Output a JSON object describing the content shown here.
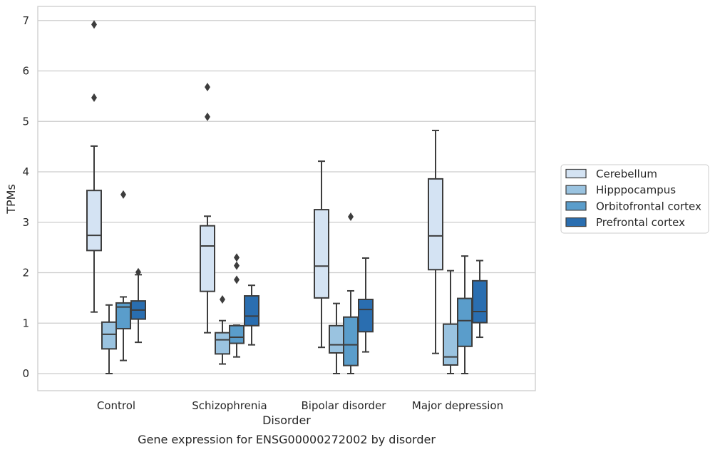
{
  "caption": "Gene expression for ENSG00000272002 by disorder",
  "chart_data": {
    "type": "box",
    "xlabel": "Disorder",
    "ylabel": "TPMs",
    "ylim": [
      -0.33,
      7.3
    ],
    "yticks": [
      0,
      1,
      2,
      3,
      4,
      5,
      6,
      7
    ],
    "grid": true,
    "legend_position": "right",
    "categories": [
      "Control",
      "Schizophrenia",
      "Bipolar disorder",
      "Major depression"
    ],
    "series": [
      {
        "name": "Cerebellum",
        "color": "#d4e3f3",
        "boxes": [
          {
            "whisker_low": 1.22,
            "q1": 2.44,
            "median": 2.74,
            "q3": 3.63,
            "whisker_high": 4.51,
            "outliers": [
              5.47,
              6.92
            ]
          },
          {
            "whisker_low": 0.81,
            "q1": 1.63,
            "median": 2.53,
            "q3": 2.93,
            "whisker_high": 3.12,
            "outliers": [
              5.09,
              5.68
            ]
          },
          {
            "whisker_low": 0.52,
            "q1": 1.5,
            "median": 2.13,
            "q3": 3.25,
            "whisker_high": 4.21,
            "outliers": []
          },
          {
            "whisker_low": 0.4,
            "q1": 2.06,
            "median": 2.73,
            "q3": 3.86,
            "whisker_high": 4.82,
            "outliers": []
          }
        ]
      },
      {
        "name": "Hipppocampus",
        "color": "#9ac3e0",
        "boxes": [
          {
            "whisker_low": 0.0,
            "q1": 0.49,
            "median": 0.78,
            "q3": 1.02,
            "whisker_high": 1.36,
            "outliers": []
          },
          {
            "whisker_low": 0.19,
            "q1": 0.39,
            "median": 0.67,
            "q3": 0.81,
            "whisker_high": 1.05,
            "outliers": [
              1.47
            ]
          },
          {
            "whisker_low": 0.0,
            "q1": 0.41,
            "median": 0.57,
            "q3": 0.95,
            "whisker_high": 1.39,
            "outliers": []
          },
          {
            "whisker_low": 0.0,
            "q1": 0.17,
            "median": 0.33,
            "q3": 0.98,
            "whisker_high": 2.04,
            "outliers": []
          }
        ]
      },
      {
        "name": "Orbitofrontal cortex",
        "color": "#5a9dcb",
        "boxes": [
          {
            "whisker_low": 0.26,
            "q1": 0.89,
            "median": 1.32,
            "q3": 1.4,
            "whisker_high": 1.52,
            "outliers": [
              3.55
            ]
          },
          {
            "whisker_low": 0.33,
            "q1": 0.6,
            "median": 0.72,
            "q3": 0.95,
            "whisker_high": 0.96,
            "outliers": [
              1.86,
              2.14,
              2.3
            ]
          },
          {
            "whisker_low": 0.0,
            "q1": 0.16,
            "median": 0.57,
            "q3": 1.12,
            "whisker_high": 1.64,
            "outliers": [
              3.11
            ]
          },
          {
            "whisker_low": 0.0,
            "q1": 0.54,
            "median": 1.05,
            "q3": 1.49,
            "whisker_high": 2.33,
            "outliers": []
          }
        ]
      },
      {
        "name": "Prefrontal cortex",
        "color": "#2a6eb0",
        "boxes": [
          {
            "whisker_low": 0.62,
            "q1": 1.08,
            "median": 1.26,
            "q3": 1.44,
            "whisker_high": 1.96,
            "outliers": [
              2.01
            ]
          },
          {
            "whisker_low": 0.57,
            "q1": 0.95,
            "median": 1.14,
            "q3": 1.54,
            "whisker_high": 1.75,
            "outliers": []
          },
          {
            "whisker_low": 0.43,
            "q1": 0.83,
            "median": 1.27,
            "q3": 1.47,
            "whisker_high": 2.29,
            "outliers": []
          },
          {
            "whisker_low": 0.72,
            "q1": 1.01,
            "median": 1.23,
            "q3": 1.84,
            "whisker_high": 2.24,
            "outliers": []
          }
        ]
      }
    ]
  }
}
